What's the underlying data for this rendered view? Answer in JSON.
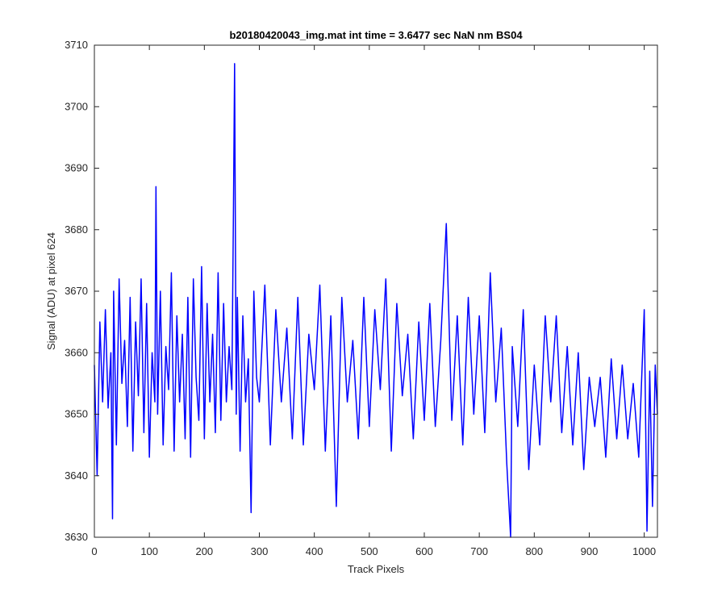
{
  "chart_data": {
    "type": "line",
    "title": "b20180420043_img.mat int time = 3.6477 sec  NaN nm BS04",
    "xlabel": "Track Pixels",
    "ylabel": "Signal (ADU) at pixel 624",
    "xlim": [
      0,
      1024
    ],
    "ylim": [
      3630,
      3710
    ],
    "xticks": [
      0,
      100,
      200,
      300,
      400,
      500,
      600,
      700,
      800,
      900,
      1000
    ],
    "yticks": [
      3630,
      3640,
      3650,
      3660,
      3670,
      3680,
      3690,
      3700,
      3710
    ],
    "grid": false,
    "legend": "none",
    "series": [
      {
        "color": "#0000ff",
        "x": [
          0,
          5,
          10,
          15,
          20,
          25,
          30,
          33,
          35,
          40,
          45,
          50,
          55,
          60,
          65,
          70,
          75,
          80,
          85,
          90,
          95,
          100,
          105,
          110,
          112,
          115,
          120,
          125,
          130,
          135,
          140,
          145,
          150,
          155,
          160,
          165,
          170,
          175,
          180,
          185,
          190,
          195,
          200,
          205,
          210,
          215,
          220,
          225,
          230,
          235,
          240,
          245,
          250,
          253,
          255,
          258,
          260,
          265,
          270,
          275,
          280,
          285,
          290,
          295,
          300,
          310,
          320,
          330,
          340,
          350,
          360,
          370,
          380,
          390,
          400,
          410,
          420,
          430,
          440,
          450,
          460,
          470,
          480,
          490,
          500,
          510,
          520,
          530,
          540,
          550,
          560,
          570,
          580,
          590,
          600,
          610,
          620,
          630,
          640,
          650,
          660,
          670,
          680,
          690,
          700,
          710,
          720,
          730,
          740,
          750,
          757,
          760,
          770,
          780,
          790,
          800,
          810,
          820,
          830,
          840,
          850,
          860,
          870,
          880,
          890,
          900,
          910,
          920,
          930,
          940,
          950,
          960,
          970,
          980,
          990,
          1000,
          1005,
          1010,
          1015,
          1020,
          1024
        ],
        "y": [
          3658,
          3640,
          3665,
          3652,
          3667,
          3651,
          3660,
          3633,
          3670,
          3645,
          3672,
          3655,
          3662,
          3648,
          3669,
          3644,
          3665,
          3653,
          3672,
          3647,
          3668,
          3643,
          3660,
          3652,
          3687,
          3650,
          3670,
          3645,
          3661,
          3654,
          3673,
          3644,
          3666,
          3652,
          3663,
          3646,
          3669,
          3643,
          3672,
          3656,
          3649,
          3674,
          3646,
          3668,
          3652,
          3663,
          3647,
          3673,
          3649,
          3668,
          3652,
          3661,
          3654,
          3684,
          3707,
          3650,
          3669,
          3644,
          3666,
          3652,
          3659,
          3634,
          3670,
          3656,
          3652,
          3671,
          3645,
          3667,
          3652,
          3664,
          3646,
          3669,
          3645,
          3663,
          3654,
          3671,
          3644,
          3666,
          3635,
          3669,
          3652,
          3662,
          3646,
          3669,
          3648,
          3667,
          3654,
          3672,
          3644,
          3668,
          3653,
          3663,
          3646,
          3665,
          3649,
          3668,
          3648,
          3662,
          3681,
          3649,
          3666,
          3645,
          3669,
          3650,
          3666,
          3647,
          3673,
          3652,
          3664,
          3642,
          3630,
          3661,
          3648,
          3667,
          3641,
          3658,
          3645,
          3666,
          3652,
          3666,
          3647,
          3661,
          3645,
          3660,
          3641,
          3656,
          3648,
          3656,
          3643,
          3659,
          3646,
          3658,
          3646,
          3655,
          3643,
          3667,
          3631,
          3657,
          3635,
          3658,
          3650
        ]
      }
    ]
  }
}
